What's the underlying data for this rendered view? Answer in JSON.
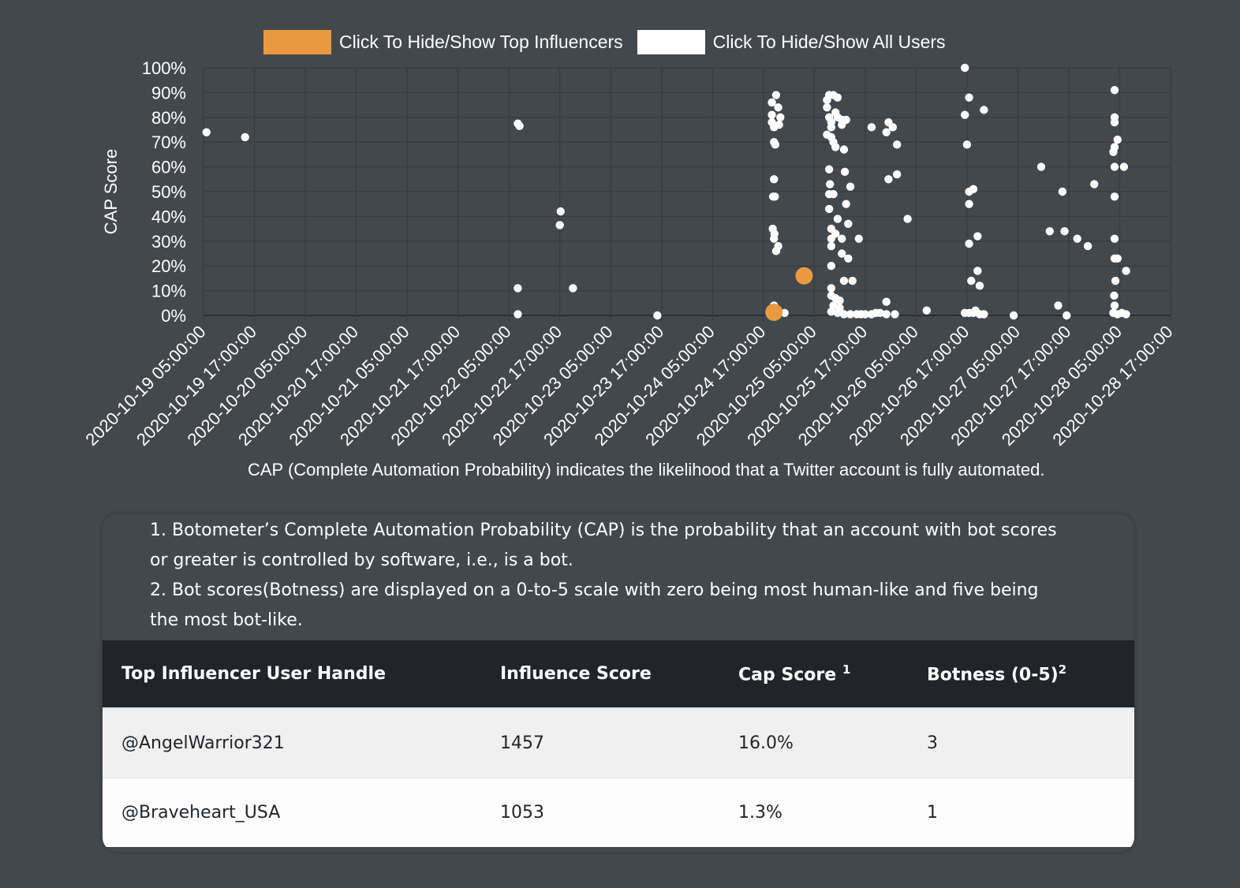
{
  "legend": [
    {
      "label": "Click To Hide/Show Top Influencers",
      "color": "#e99a41"
    },
    {
      "label": "Click To Hide/Show All Users",
      "color": "#ffffff"
    }
  ],
  "caption": "CAP (Complete Automation Probability) indicates the likelihood that a Twitter account is fully automated.",
  "notes": [
    "1. Botometer’s Complete Automation Probability (CAP) is the probability that an account with bot scores or greater is controlled by software, i.e., is a bot.",
    "2. Bot scores(Botness) are displayed on a 0-to-5 scale with zero being most human-like and five being the most bot-like."
  ],
  "table": {
    "headers": [
      {
        "label": "Top Influencer User Handle",
        "sup": ""
      },
      {
        "label": "Influence Score",
        "sup": ""
      },
      {
        "label": "Cap Score ",
        "sup": "1"
      },
      {
        "label": "Botness (0-5)",
        "sup": "2"
      }
    ],
    "rows": [
      [
        "@AngelWarrior321",
        "1457",
        "16.0%",
        "3"
      ],
      [
        "@Braveheart_USA",
        "1053",
        "1.3%",
        "1"
      ]
    ]
  },
  "chart_data": {
    "type": "scatter",
    "title": "",
    "ylabel": "CAP Score",
    "xlabel": "",
    "x_start": "2020-10-19 05:00:00",
    "x_unit": "hours since x_start",
    "xlim": [
      0,
      228
    ],
    "ylim": [
      0,
      100
    ],
    "grid": true,
    "legend_position": "top",
    "y_ticks": [
      "0%",
      "10%",
      "20%",
      "30%",
      "40%",
      "50%",
      "60%",
      "70%",
      "80%",
      "90%",
      "100%"
    ],
    "x_ticks": [
      "2020-10-19 05:00:00",
      "2020-10-19 17:00:00",
      "2020-10-20 05:00:00",
      "2020-10-20 17:00:00",
      "2020-10-21 05:00:00",
      "2020-10-21 17:00:00",
      "2020-10-22 05:00:00",
      "2020-10-22 17:00:00",
      "2020-10-23 05:00:00",
      "2020-10-23 17:00:00",
      "2020-10-24 05:00:00",
      "2020-10-24 17:00:00",
      "2020-10-25 05:00:00",
      "2020-10-25 17:00:00",
      "2020-10-26 05:00:00",
      "2020-10-26 17:00:00",
      "2020-10-27 05:00:00",
      "2020-10-27 17:00:00",
      "2020-10-28 05:00:00",
      "2020-10-28 17:00:00"
    ],
    "series": [
      {
        "name": "Top Influencers",
        "color": "#e99a41",
        "points": [
          [
            141.6,
            16.0
          ],
          [
            134.5,
            1.3
          ]
        ]
      },
      {
        "name": "All Users",
        "color": "#ffffff",
        "points": [
          [
            0.7,
            74
          ],
          [
            9.8,
            72
          ],
          [
            74.1,
            77.5
          ],
          [
            74.5,
            76.5
          ],
          [
            74.1,
            11
          ],
          [
            74.1,
            0.5
          ],
          [
            84.2,
            42
          ],
          [
            84,
            36.5
          ],
          [
            87.1,
            11
          ],
          [
            107,
            0
          ],
          [
            135,
            89
          ],
          [
            134,
            86
          ],
          [
            135.5,
            84
          ],
          [
            134,
            81
          ],
          [
            136,
            80
          ],
          [
            134,
            78
          ],
          [
            135.7,
            77
          ],
          [
            134.5,
            76
          ],
          [
            134.5,
            70
          ],
          [
            134.8,
            69
          ],
          [
            134.5,
            55
          ],
          [
            134.3,
            48
          ],
          [
            134.7,
            48
          ],
          [
            134.2,
            35
          ],
          [
            134.6,
            33
          ],
          [
            134.5,
            31
          ],
          [
            135.5,
            28
          ],
          [
            135,
            26
          ],
          [
            134.5,
            4
          ],
          [
            135.5,
            2
          ],
          [
            137,
            1
          ],
          [
            147.5,
            89
          ],
          [
            148.5,
            89
          ],
          [
            147,
            87
          ],
          [
            149.5,
            88
          ],
          [
            147,
            84
          ],
          [
            149,
            82
          ],
          [
            147.5,
            80
          ],
          [
            149.5,
            80
          ],
          [
            148,
            78
          ],
          [
            150.5,
            79
          ],
          [
            148,
            76
          ],
          [
            151.5,
            79
          ],
          [
            150.5,
            77
          ],
          [
            147,
            73
          ],
          [
            148,
            72
          ],
          [
            148.5,
            70
          ],
          [
            149,
            68
          ],
          [
            151,
            67
          ],
          [
            147.5,
            59
          ],
          [
            151.2,
            58
          ],
          [
            147.7,
            53
          ],
          [
            152.5,
            52
          ],
          [
            147.5,
            49
          ],
          [
            148.5,
            49
          ],
          [
            151.5,
            45
          ],
          [
            147.5,
            43
          ],
          [
            149.5,
            39
          ],
          [
            152,
            37
          ],
          [
            148,
            35
          ],
          [
            149,
            33
          ],
          [
            148,
            31
          ],
          [
            150.5,
            31
          ],
          [
            154.5,
            31
          ],
          [
            148,
            28
          ],
          [
            150.5,
            25
          ],
          [
            152,
            23
          ],
          [
            148,
            20
          ],
          [
            151,
            14
          ],
          [
            153,
            14
          ],
          [
            148,
            11
          ],
          [
            148,
            8
          ],
          [
            149,
            7
          ],
          [
            150,
            6
          ],
          [
            148.5,
            4
          ],
          [
            150,
            3
          ],
          [
            148,
            1.5
          ],
          [
            149.5,
            1
          ],
          [
            151,
            0.5
          ],
          [
            152.5,
            0.5
          ],
          [
            154,
            0.5
          ],
          [
            155,
            0.5
          ],
          [
            156,
            0.5
          ],
          [
            157.5,
            0.5
          ],
          [
            157.5,
            76
          ],
          [
            161.5,
            78
          ],
          [
            162.5,
            76
          ],
          [
            161,
            74
          ],
          [
            163.5,
            69
          ],
          [
            161.5,
            55
          ],
          [
            163.5,
            57
          ],
          [
            161,
            5.5
          ],
          [
            158.5,
            1
          ],
          [
            159.5,
            1
          ],
          [
            161,
            0.5
          ],
          [
            163,
            0.5
          ],
          [
            166,
            39
          ],
          [
            170.5,
            2
          ],
          [
            179.5,
            100
          ],
          [
            180.5,
            88
          ],
          [
            179.5,
            81
          ],
          [
            180,
            69
          ],
          [
            184,
            83
          ],
          [
            180.5,
            50
          ],
          [
            181.5,
            51
          ],
          [
            180.5,
            45
          ],
          [
            180.5,
            29
          ],
          [
            182.5,
            32
          ],
          [
            181,
            14
          ],
          [
            182.5,
            18
          ],
          [
            183,
            12
          ],
          [
            179.5,
            1
          ],
          [
            180.5,
            1
          ],
          [
            181.5,
            1
          ],
          [
            182,
            2
          ],
          [
            183,
            0.5
          ],
          [
            184,
            0.5
          ],
          [
            191,
            0
          ],
          [
            197.5,
            60
          ],
          [
            199.5,
            34
          ],
          [
            203,
            34
          ],
          [
            202.5,
            50
          ],
          [
            203.5,
            0
          ],
          [
            206,
            31
          ],
          [
            208.5,
            28
          ],
          [
            201.5,
            4
          ],
          [
            210,
            53
          ],
          [
            214.8,
            91
          ],
          [
            214.8,
            80
          ],
          [
            214.8,
            78
          ],
          [
            215.5,
            71
          ],
          [
            214.8,
            68
          ],
          [
            214.5,
            66
          ],
          [
            214.8,
            60
          ],
          [
            217,
            60
          ],
          [
            214.8,
            48
          ],
          [
            214.8,
            31
          ],
          [
            214.8,
            23
          ],
          [
            215.5,
            23
          ],
          [
            215,
            14
          ],
          [
            217.5,
            18
          ],
          [
            214.7,
            8
          ],
          [
            214.8,
            4
          ],
          [
            214.5,
            1
          ],
          [
            215.5,
            0.5
          ],
          [
            216.5,
            1
          ],
          [
            217.5,
            0.5
          ]
        ]
      }
    ]
  }
}
